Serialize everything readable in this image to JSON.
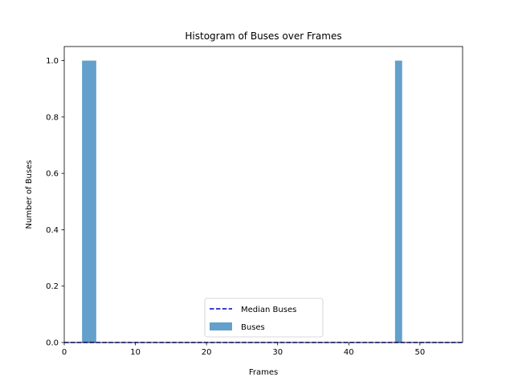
{
  "chart_data": {
    "type": "bar",
    "title": "Histogram of Buses over Frames",
    "xlabel": "Frames",
    "ylabel": "Number of Buses",
    "xlim": [
      0,
      56
    ],
    "ylim": [
      0,
      1.05
    ],
    "xticks": [
      0,
      10,
      20,
      30,
      40,
      50
    ],
    "yticks": [
      0.0,
      0.2,
      0.4,
      0.6,
      0.8,
      1.0
    ],
    "ytick_labels": [
      "0.0",
      "0.2",
      "0.4",
      "0.6",
      "0.8",
      "1.0"
    ],
    "series": [
      {
        "name": "Buses",
        "color": "#5b9bc8",
        "bins": [
          {
            "x0": 2.5,
            "x1": 3.5,
            "value": 1
          },
          {
            "x0": 3.5,
            "x1": 4.5,
            "value": 1
          },
          {
            "x0": 46.5,
            "x1": 47.5,
            "value": 1
          }
        ]
      }
    ],
    "reference_lines": [
      {
        "name": "Median Buses",
        "y": 0,
        "style": "dashed",
        "color": "#0000bb"
      }
    ],
    "legend": {
      "placement": "bottom-center",
      "entries": [
        {
          "label": "Median Buses",
          "kind": "dashed-line",
          "color": "#0000bb"
        },
        {
          "label": "Buses",
          "kind": "patch",
          "color": "#5b9bc8"
        }
      ]
    },
    "grid": false
  }
}
